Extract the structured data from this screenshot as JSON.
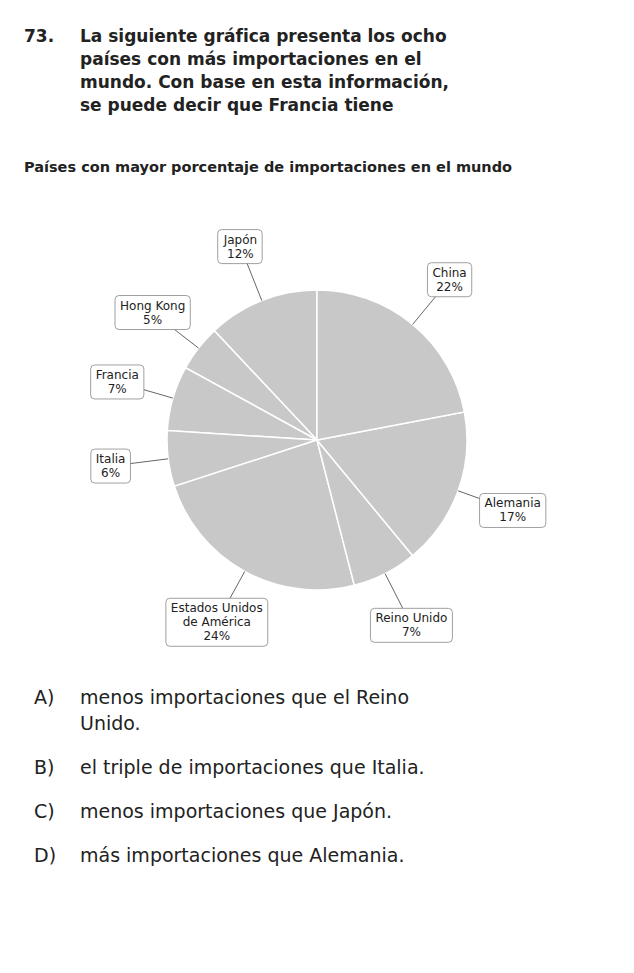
{
  "chart_data": {
    "type": "pie",
    "title": "Países con mayor porcentaje de importaciones en el mundo",
    "categories": [
      "Japón",
      "Hong Kong",
      "Francia",
      "Italia",
      "Estados Unidos\nde América",
      "Reino Unido",
      "Alemania",
      "China"
    ],
    "values": [
      12,
      5,
      7,
      6,
      24,
      7,
      17,
      22
    ],
    "value_labels": [
      "12%",
      "5%",
      "7%",
      "6%",
      "24%",
      "7%",
      "17%",
      "22%"
    ],
    "data_labels": true,
    "color": "#c8c8c8",
    "annotations": [
      "73.",
      "La siguiente gráfica presenta los ocho\npaíses con más importaciones en el\nmundo. Con base en esta información,\nse puede decir que Francia tiene",
      "A)",
      "menos importaciones que el Reino\nUnido.",
      "B)",
      "el triple de importaciones que Italia.",
      "C)",
      "menos importaciones que Japón.",
      "D)",
      "más importaciones que Alemania."
    ]
  }
}
